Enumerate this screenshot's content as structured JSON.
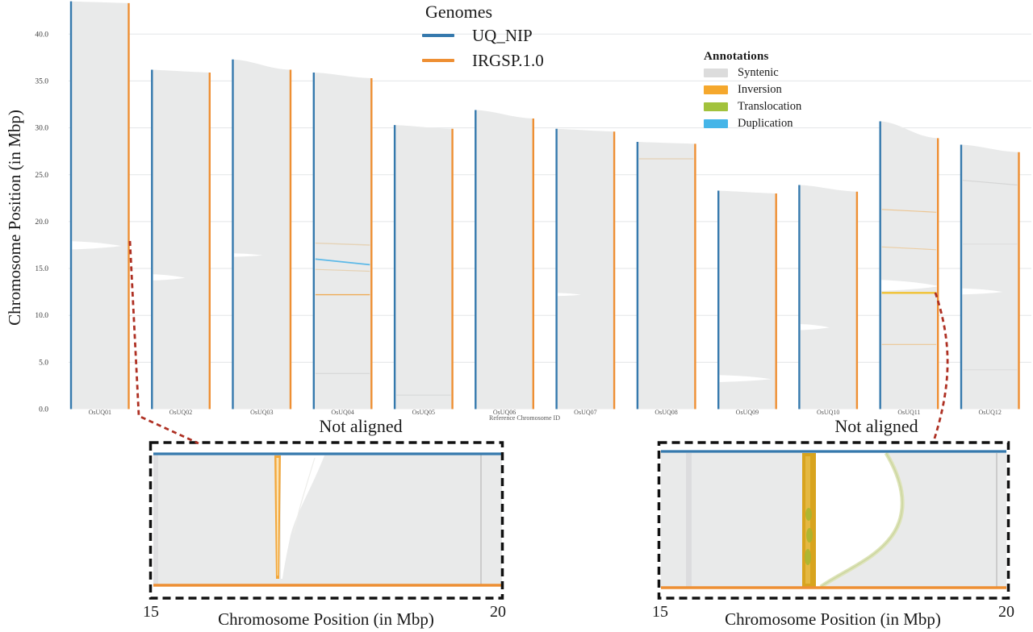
{
  "y_axis_title": "Chromosome Position (in Mbp)",
  "x_axis_title": "Reference Chromosome ID",
  "legend_genomes": {
    "title": "Genomes",
    "items": [
      {
        "label": "UQ_NIP",
        "color": "#3579ad"
      },
      {
        "label": "IRGSP.1.0",
        "color": "#ee8f33"
      }
    ]
  },
  "legend_annotations": {
    "title": "Annotations",
    "items": [
      {
        "label": "Syntenic",
        "color": "#dcdcdc"
      },
      {
        "label": "Inversion",
        "color": "#f5a82d"
      },
      {
        "label": "Translocation",
        "color": "#a2c23c"
      },
      {
        "label": "Duplication",
        "color": "#45b5e8"
      }
    ]
  },
  "not_aligned_left": "Not aligned",
  "not_aligned_right": "Not aligned",
  "insets": {
    "left": {
      "tick_start": "15",
      "tick_end": "20",
      "xlabel": "Chromosome Position (in Mbp)"
    },
    "right": {
      "tick_start": "15",
      "tick_end": "20",
      "xlabel": "Chromosome Position (in Mbp)"
    }
  },
  "arrow_color": "#ae3023",
  "chart_data": {
    "type": "bar",
    "xlabel": "Reference Chromosome ID",
    "ylabel": "Chromosome Position (in Mbp)",
    "ylim": [
      0,
      45
    ],
    "yticks": [
      0,
      5,
      10,
      15,
      20,
      25,
      30,
      35,
      40
    ],
    "grid": true,
    "legend_position": "top",
    "categories": [
      "OsUQ01",
      "OsUQ02",
      "OsUQ03",
      "OsUQ04",
      "OsUQ05",
      "OsUQ06",
      "OsUQ07",
      "OsUQ08",
      "OsUQ09",
      "OsUQ10",
      "OsUQ11",
      "OsUQ12"
    ],
    "series": [
      {
        "name": "UQ_NIP",
        "color": "#3579ad",
        "values": [
          43.5,
          36.2,
          37.3,
          35.9,
          30.3,
          31.9,
          29.9,
          28.5,
          23.3,
          23.9,
          30.7,
          28.2
        ]
      },
      {
        "name": "IRGSP.1.0",
        "color": "#ee8f33",
        "values": [
          43.3,
          35.9,
          36.2,
          35.3,
          29.9,
          31.0,
          29.6,
          28.3,
          23.0,
          23.2,
          28.9,
          27.4
        ]
      }
    ],
    "syntenic_fill": "#e9eaea",
    "feature_colors": {
      "tan": "#e3c18f",
      "gray": "#c6c6c6",
      "inversion": "#f0a23c",
      "inversion_strong": "#f1c232",
      "duplication": "#55b7e8"
    },
    "annotations": [
      {
        "chrom": 1,
        "type": "not_aligned_gap",
        "mbp": 17.4,
        "extent": 0.85,
        "h": 0.8
      },
      {
        "chrom": 2,
        "type": "not_aligned_gap",
        "mbp": 14.0,
        "extent": 0.55,
        "h": 0.6
      },
      {
        "chrom": 3,
        "type": "not_aligned_gap",
        "mbp": 16.4,
        "extent": 0.5,
        "h": 0.35
      },
      {
        "chrom": 4,
        "type": "line",
        "color_key": "tan",
        "mbp": 17.7,
        "mbp2": 17.5,
        "opacity": 0.55,
        "width": 1.4
      },
      {
        "chrom": 4,
        "type": "line",
        "color_key": "duplication",
        "mbp": 16.0,
        "mbp2": 15.4,
        "opacity": 0.95,
        "width": 1.8
      },
      {
        "chrom": 4,
        "type": "line",
        "color_key": "tan",
        "mbp": 14.9,
        "mbp2": 14.7,
        "opacity": 0.6,
        "width": 1.2
      },
      {
        "chrom": 4,
        "type": "line",
        "color_key": "inversion",
        "mbp": 12.2,
        "opacity": 0.85,
        "width": 1.4
      },
      {
        "chrom": 4,
        "type": "line",
        "color_key": "gray",
        "mbp": 3.8,
        "opacity": 0.6,
        "width": 1
      },
      {
        "chrom": 5,
        "type": "line",
        "color_key": "gray",
        "mbp": 1.5,
        "opacity": 0.55,
        "width": 1
      },
      {
        "chrom": 7,
        "type": "not_aligned_gap",
        "mbp": 12.2,
        "extent": 0.4,
        "h": 0.3
      },
      {
        "chrom": 8,
        "type": "line",
        "color_key": "tan",
        "mbp": 26.7,
        "opacity": 0.6,
        "width": 1.2
      },
      {
        "chrom": 9,
        "type": "not_aligned_gap",
        "mbp": 3.2,
        "extent": 0.9,
        "h": 0.7
      },
      {
        "chrom": 10,
        "type": "not_aligned_gap",
        "mbp": 8.7,
        "extent": 0.5,
        "h": 0.6
      },
      {
        "chrom": 11,
        "type": "line",
        "color_key": "inversion",
        "mbp": 21.3,
        "mbp2": 21.0,
        "opacity": 0.5,
        "width": 1.2
      },
      {
        "chrom": 11,
        "type": "line",
        "color_key": "inversion",
        "mbp": 17.3,
        "mbp2": 17.0,
        "opacity": 0.4,
        "width": 1.2
      },
      {
        "chrom": 11,
        "type": "not_aligned_gap",
        "mbp": 13.1,
        "extent": 1.0,
        "h": 1.1
      },
      {
        "chrom": 11,
        "type": "line",
        "color_key": "inversion_strong",
        "mbp": 12.4,
        "opacity": 1,
        "width": 2.4
      },
      {
        "chrom": 11,
        "type": "line",
        "color_key": "inversion",
        "mbp": 6.9,
        "opacity": 0.5,
        "width": 1.2
      },
      {
        "chrom": 12,
        "type": "line",
        "color_key": "gray",
        "mbp": 24.4,
        "mbp2": 23.9,
        "opacity": 0.55,
        "width": 1.2
      },
      {
        "chrom": 12,
        "type": "line",
        "color_key": "gray",
        "mbp": 17.6,
        "opacity": 0.35,
        "width": 1
      },
      {
        "chrom": 12,
        "type": "not_aligned_gap",
        "mbp": 12.5,
        "extent": 0.7,
        "h": 0.6
      },
      {
        "chrom": 12,
        "type": "line",
        "color_key": "gray",
        "mbp": 4.2,
        "opacity": 0.4,
        "width": 1
      }
    ]
  }
}
